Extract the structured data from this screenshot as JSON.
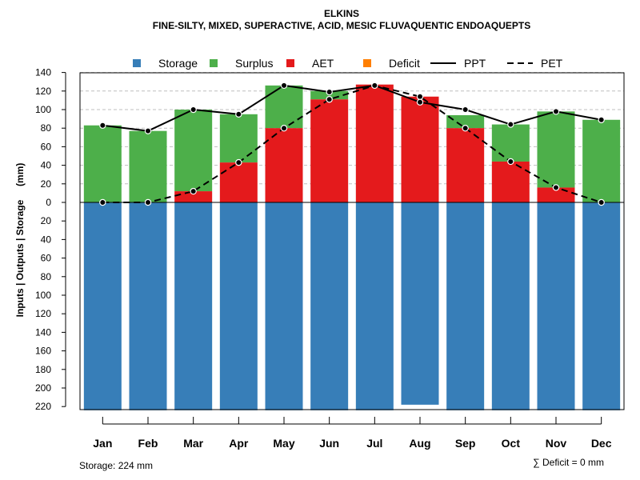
{
  "chart_data": {
    "type": "bar",
    "title": "ELKINS",
    "subtitle": "FINE-SILTY, MIXED, SUPERACTIVE, ACID, MESIC FLUVAQUENTIC ENDOAQUEPTS",
    "ylabel": "Inputs | Outputs | Storage     (mm)",
    "xlabel": "",
    "ylim": [
      -224,
      140
    ],
    "grid": "horizontal dashed, top half",
    "legend_position": "top",
    "categories": [
      "Jan",
      "Feb",
      "Mar",
      "Apr",
      "May",
      "Jun",
      "Jul",
      "Aug",
      "Sep",
      "Oct",
      "Nov",
      "Dec"
    ],
    "yticks": [
      {
        "value": 140,
        "label": "140"
      },
      {
        "value": 120,
        "label": "120"
      },
      {
        "value": 100,
        "label": "100"
      },
      {
        "value": 80,
        "label": "80"
      },
      {
        "value": 60,
        "label": "60"
      },
      {
        "value": 40,
        "label": "40"
      },
      {
        "value": 20,
        "label": "20"
      },
      {
        "value": 0,
        "label": "0"
      },
      {
        "value": -20,
        "label": "20"
      },
      {
        "value": -40,
        "label": "40"
      },
      {
        "value": -60,
        "label": "60"
      },
      {
        "value": -80,
        "label": "80"
      },
      {
        "value": -100,
        "label": "100"
      },
      {
        "value": -120,
        "label": "120"
      },
      {
        "value": -140,
        "label": "140"
      },
      {
        "value": -160,
        "label": "160"
      },
      {
        "value": -180,
        "label": "180"
      },
      {
        "value": -200,
        "label": "200"
      },
      {
        "value": -220,
        "label": "220"
      }
    ],
    "series": [
      {
        "name": "Storage",
        "kind": "bar-down",
        "color": "#377EB8",
        "values": [
          224,
          224,
          224,
          224,
          224,
          224,
          224,
          218,
          224,
          224,
          224,
          224
        ]
      },
      {
        "name": "Surplus",
        "kind": "bar-up-stacked",
        "color": "#4DAF4A",
        "values": [
          83,
          77,
          88,
          52,
          46,
          9,
          0,
          0,
          14,
          40,
          82,
          89
        ]
      },
      {
        "name": "AET",
        "kind": "bar-up",
        "color": "#E41A1C",
        "values": [
          0,
          0,
          12,
          43,
          80,
          111,
          127,
          114,
          80,
          44,
          16,
          0
        ]
      },
      {
        "name": "Deficit",
        "kind": "bar-up",
        "color": "#FF7F00",
        "values": [
          0,
          0,
          0,
          0,
          0,
          0,
          0,
          0,
          0,
          0,
          0,
          0
        ]
      },
      {
        "name": "PPT",
        "kind": "line-solid",
        "color": "#000000",
        "values": [
          83,
          77,
          100,
          95,
          126,
          119,
          126,
          108,
          100,
          84,
          98,
          89
        ]
      },
      {
        "name": "PET",
        "kind": "line-dashed",
        "color": "#000000",
        "values": [
          0,
          0,
          12,
          43,
          80,
          111,
          126,
          114,
          80,
          44,
          16,
          0
        ]
      }
    ],
    "annotations": {
      "storage_note": "Storage: 224 mm",
      "deficit_note": "∑ Deficit = 0 mm"
    }
  }
}
